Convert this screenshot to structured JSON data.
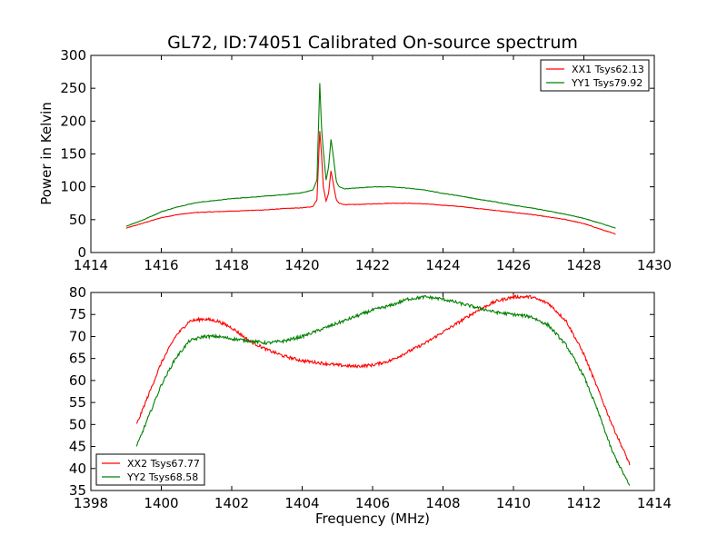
{
  "chart_data": [
    {
      "type": "line",
      "title": "GL72, ID:74051 Calibrated On-source spectrum",
      "xlabel": "",
      "ylabel": "Power in Kelvin",
      "xlim": [
        1414,
        1430
      ],
      "ylim": [
        0,
        300
      ],
      "xticks": [
        "1414",
        "1416",
        "1418",
        "1420",
        "1422",
        "1424",
        "1426",
        "1428",
        "1430"
      ],
      "yticks": [
        "0",
        "50",
        "100",
        "150",
        "200",
        "250",
        "300"
      ],
      "legend_position": "top-right",
      "series": [
        {
          "name": "XX1 Tsys62.13",
          "color": "#ff0000",
          "x": [
            1415.0,
            1415.5,
            1416.0,
            1416.5,
            1417.0,
            1417.5,
            1418.0,
            1418.5,
            1419.0,
            1419.5,
            1420.0,
            1420.3,
            1420.42,
            1420.5,
            1420.55,
            1420.6,
            1420.68,
            1420.75,
            1420.82,
            1420.9,
            1420.97,
            1421.05,
            1421.2,
            1421.5,
            1422.0,
            1422.5,
            1423.0,
            1423.5,
            1424.0,
            1424.5,
            1425.0,
            1425.5,
            1426.0,
            1426.5,
            1427.0,
            1427.5,
            1428.0,
            1428.5,
            1428.9
          ],
          "y": [
            37,
            45,
            53,
            58,
            61,
            62,
            63,
            64,
            65,
            67,
            68,
            70,
            80,
            185,
            150,
            100,
            78,
            90,
            125,
            100,
            80,
            75,
            73,
            73,
            74,
            75,
            75,
            74,
            72,
            70,
            67,
            64,
            61,
            58,
            54,
            50,
            44,
            35,
            28
          ]
        },
        {
          "name": "YY1 Tsys79.92",
          "color": "#008000",
          "x": [
            1415.0,
            1415.5,
            1416.0,
            1416.5,
            1417.0,
            1417.5,
            1418.0,
            1418.5,
            1419.0,
            1419.5,
            1420.0,
            1420.3,
            1420.42,
            1420.5,
            1420.55,
            1420.6,
            1420.68,
            1420.75,
            1420.82,
            1420.9,
            1420.97,
            1421.05,
            1421.2,
            1421.5,
            1422.0,
            1422.5,
            1423.0,
            1423.5,
            1424.0,
            1424.5,
            1425.0,
            1425.5,
            1426.0,
            1426.5,
            1427.0,
            1427.5,
            1428.0,
            1428.5,
            1428.9
          ],
          "y": [
            40,
            50,
            62,
            70,
            76,
            79,
            82,
            84,
            86,
            88,
            91,
            95,
            110,
            258,
            190,
            155,
            110,
            130,
            173,
            140,
            108,
            100,
            97,
            98,
            100,
            100,
            98,
            95,
            90,
            86,
            81,
            77,
            72,
            68,
            63,
            58,
            52,
            44,
            37
          ]
        }
      ]
    },
    {
      "type": "line",
      "title": "",
      "xlabel": "Frequency (MHz)",
      "ylabel": "",
      "xlim": [
        1398,
        1414
      ],
      "ylim": [
        35,
        80
      ],
      "xticks": [
        "1398",
        "1400",
        "1402",
        "1404",
        "1406",
        "1408",
        "1410",
        "1412",
        "1414"
      ],
      "yticks": [
        "35",
        "40",
        "45",
        "50",
        "55",
        "60",
        "65",
        "70",
        "75",
        "80"
      ],
      "legend_position": "bottom-left",
      "series": [
        {
          "name": "XX2 Tsys67.77",
          "color": "#ff0000",
          "x": [
            1399.3,
            1399.6,
            1400.0,
            1400.4,
            1400.8,
            1401.2,
            1401.6,
            1402.0,
            1402.5,
            1403.0,
            1403.5,
            1404.0,
            1404.5,
            1405.0,
            1405.5,
            1406.0,
            1406.5,
            1407.0,
            1407.5,
            1408.0,
            1408.5,
            1409.0,
            1409.5,
            1410.0,
            1410.5,
            1411.0,
            1411.5,
            1412.0,
            1412.4,
            1412.8,
            1413.3
          ],
          "y": [
            50,
            56,
            64,
            70,
            73.5,
            74,
            73.5,
            72,
            69,
            67,
            65.5,
            64.5,
            64,
            63.5,
            63.2,
            63.5,
            64.5,
            66.5,
            68.5,
            71,
            73.5,
            76,
            78,
            79,
            79,
            77.5,
            73.5,
            66,
            58,
            50,
            41
          ]
        },
        {
          "name": "YY2 Tsys68.58",
          "color": "#008000",
          "x": [
            1399.3,
            1399.6,
            1400.0,
            1400.4,
            1400.8,
            1401.2,
            1401.6,
            1402.0,
            1402.5,
            1403.0,
            1403.5,
            1404.0,
            1404.5,
            1405.0,
            1405.5,
            1406.0,
            1406.5,
            1407.0,
            1407.5,
            1408.0,
            1408.5,
            1409.0,
            1409.5,
            1410.0,
            1410.5,
            1411.0,
            1411.5,
            1412.0,
            1412.4,
            1412.8,
            1413.3
          ],
          "y": [
            45,
            51,
            59,
            65,
            69,
            70,
            70,
            69.5,
            69,
            68.5,
            69,
            70,
            71.5,
            73,
            74.5,
            76,
            77,
            78.5,
            79,
            78.5,
            77.5,
            76.5,
            75.5,
            75,
            74.5,
            72.5,
            68,
            61,
            53,
            44,
            36
          ]
        }
      ]
    }
  ]
}
